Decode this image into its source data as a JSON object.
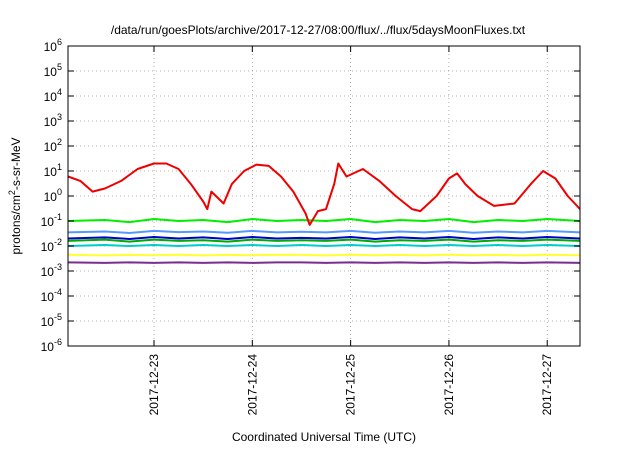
{
  "chart_data": {
    "type": "line",
    "title": "/data/run/goesPlots/archive/2017-12-27/08:00/flux/../flux/5daysMoonFluxes.txt",
    "xlabel": "Coordinated Universal Time (UTC)",
    "ylabel": {
      "base": "protons/cm",
      "sup": "2",
      "rest": "-s-sr-MeV"
    },
    "y_scale": "log",
    "ylim": [
      1e-06,
      1000000.0
    ],
    "y_ticks": [
      {
        "value": 1e-06,
        "base": "10",
        "exp": "-6"
      },
      {
        "value": 1e-05,
        "base": "10",
        "exp": "-5"
      },
      {
        "value": 0.0001,
        "base": "10",
        "exp": "-4"
      },
      {
        "value": 0.001,
        "base": "10",
        "exp": "-3"
      },
      {
        "value": 0.01,
        "base": "10",
        "exp": "-2"
      },
      {
        "value": 0.1,
        "base": "10",
        "exp": "-1"
      },
      {
        "value": 1,
        "base": "10",
        "exp": "0"
      },
      {
        "value": 10,
        "base": "10",
        "exp": "1"
      },
      {
        "value": 100,
        "base": "10",
        "exp": "2"
      },
      {
        "value": 1000,
        "base": "10",
        "exp": "3"
      },
      {
        "value": 10000,
        "base": "10",
        "exp": "4"
      },
      {
        "value": 100000,
        "base": "10",
        "exp": "5"
      },
      {
        "value": 1000000,
        "base": "10",
        "exp": "6"
      }
    ],
    "xlim": [
      "2017-12-22T03:00",
      "2017-12-27T08:00"
    ],
    "x_ticks": [
      {
        "value": "2017-12-23T00:00",
        "label": "2017-12-23"
      },
      {
        "value": "2017-12-24T00:00",
        "label": "2017-12-24"
      },
      {
        "value": "2017-12-25T00:00",
        "label": "2017-12-25"
      },
      {
        "value": "2017-12-26T00:00",
        "label": "2017-12-26"
      },
      {
        "value": "2017-12-27T00:00",
        "label": "2017-12-27"
      }
    ],
    "grid": "dotted",
    "series": [
      {
        "color": "#7b2d8e",
        "points": [
          [
            "2017-12-22T03:00",
            0.0022
          ],
          [
            "2017-12-22T12:00",
            0.0021
          ],
          [
            "2017-12-22T18:00",
            0.0022
          ],
          [
            "2017-12-23T00:00",
            0.0021
          ],
          [
            "2017-12-23T06:00",
            0.0022
          ],
          [
            "2017-12-23T12:00",
            0.0021
          ],
          [
            "2017-12-23T18:00",
            0.0022
          ],
          [
            "2017-12-24T00:00",
            0.0021
          ],
          [
            "2017-12-24T06:00",
            0.0022
          ],
          [
            "2017-12-24T12:00",
            0.0022
          ],
          [
            "2017-12-24T18:00",
            0.0021
          ],
          [
            "2017-12-25T00:00",
            0.0022
          ],
          [
            "2017-12-25T06:00",
            0.0021
          ],
          [
            "2017-12-25T12:00",
            0.0022
          ],
          [
            "2017-12-25T18:00",
            0.0021
          ],
          [
            "2017-12-26T00:00",
            0.0022
          ],
          [
            "2017-12-26T06:00",
            0.0021
          ],
          [
            "2017-12-26T12:00",
            0.0022
          ],
          [
            "2017-12-26T18:00",
            0.0021
          ],
          [
            "2017-12-27T00:00",
            0.0022
          ],
          [
            "2017-12-27T08:00",
            0.0021
          ]
        ]
      },
      {
        "color": "#ffff33",
        "points": [
          [
            "2017-12-22T03:00",
            0.0045
          ],
          [
            "2017-12-22T12:00",
            0.0042
          ],
          [
            "2017-12-22T18:00",
            0.0044
          ],
          [
            "2017-12-23T00:00",
            0.0043
          ],
          [
            "2017-12-23T06:00",
            0.0045
          ],
          [
            "2017-12-23T12:00",
            0.0042
          ],
          [
            "2017-12-23T18:00",
            0.0044
          ],
          [
            "2017-12-24T00:00",
            0.0043
          ],
          [
            "2017-12-24T06:00",
            0.0045
          ],
          [
            "2017-12-24T12:00",
            0.0044
          ],
          [
            "2017-12-24T18:00",
            0.0042
          ],
          [
            "2017-12-25T00:00",
            0.0045
          ],
          [
            "2017-12-25T06:00",
            0.0043
          ],
          [
            "2017-12-25T12:00",
            0.0044
          ],
          [
            "2017-12-25T18:00",
            0.0042
          ],
          [
            "2017-12-26T00:00",
            0.0045
          ],
          [
            "2017-12-26T06:00",
            0.0043
          ],
          [
            "2017-12-26T12:00",
            0.0044
          ],
          [
            "2017-12-26T18:00",
            0.0042
          ],
          [
            "2017-12-27T00:00",
            0.0045
          ],
          [
            "2017-12-27T08:00",
            0.0043
          ]
        ]
      },
      {
        "color": "#00cccc",
        "points": [
          [
            "2017-12-22T03:00",
            0.01
          ],
          [
            "2017-12-22T12:00",
            0.011
          ],
          [
            "2017-12-22T18:00",
            0.01
          ],
          [
            "2017-12-23T00:00",
            0.011
          ],
          [
            "2017-12-23T06:00",
            0.01
          ],
          [
            "2017-12-23T12:00",
            0.011
          ],
          [
            "2017-12-23T18:00",
            0.01
          ],
          [
            "2017-12-24T00:00",
            0.011
          ],
          [
            "2017-12-24T06:00",
            0.01
          ],
          [
            "2017-12-24T12:00",
            0.011
          ],
          [
            "2017-12-24T18:00",
            0.01
          ],
          [
            "2017-12-25T00:00",
            0.011
          ],
          [
            "2017-12-25T06:00",
            0.01
          ],
          [
            "2017-12-25T12:00",
            0.011
          ],
          [
            "2017-12-25T18:00",
            0.01
          ],
          [
            "2017-12-26T00:00",
            0.011
          ],
          [
            "2017-12-26T06:00",
            0.01
          ],
          [
            "2017-12-26T12:00",
            0.011
          ],
          [
            "2017-12-26T18:00",
            0.01
          ],
          [
            "2017-12-27T00:00",
            0.011
          ],
          [
            "2017-12-27T08:00",
            0.01
          ]
        ]
      },
      {
        "color": "#00aa00",
        "points": [
          [
            "2017-12-22T03:00",
            0.016
          ],
          [
            "2017-12-22T12:00",
            0.018
          ],
          [
            "2017-12-22T18:00",
            0.015
          ],
          [
            "2017-12-23T00:00",
            0.018
          ],
          [
            "2017-12-23T06:00",
            0.016
          ],
          [
            "2017-12-23T12:00",
            0.017
          ],
          [
            "2017-12-23T18:00",
            0.015
          ],
          [
            "2017-12-24T00:00",
            0.018
          ],
          [
            "2017-12-24T06:00",
            0.016
          ],
          [
            "2017-12-24T12:00",
            0.017
          ],
          [
            "2017-12-24T18:00",
            0.016
          ],
          [
            "2017-12-25T00:00",
            0.018
          ],
          [
            "2017-12-25T06:00",
            0.015
          ],
          [
            "2017-12-25T12:00",
            0.017
          ],
          [
            "2017-12-25T18:00",
            0.016
          ],
          [
            "2017-12-26T00:00",
            0.018
          ],
          [
            "2017-12-26T06:00",
            0.015
          ],
          [
            "2017-12-26T12:00",
            0.017
          ],
          [
            "2017-12-26T18:00",
            0.016
          ],
          [
            "2017-12-27T00:00",
            0.018
          ],
          [
            "2017-12-27T08:00",
            0.016
          ]
        ]
      },
      {
        "color": "#0000cc",
        "points": [
          [
            "2017-12-22T03:00",
            0.02
          ],
          [
            "2017-12-22T12:00",
            0.022
          ],
          [
            "2017-12-22T18:00",
            0.019
          ],
          [
            "2017-12-23T00:00",
            0.023
          ],
          [
            "2017-12-23T06:00",
            0.02
          ],
          [
            "2017-12-23T12:00",
            0.022
          ],
          [
            "2017-12-23T18:00",
            0.019
          ],
          [
            "2017-12-24T00:00",
            0.023
          ],
          [
            "2017-12-24T06:00",
            0.02
          ],
          [
            "2017-12-24T12:00",
            0.021
          ],
          [
            "2017-12-24T18:00",
            0.02
          ],
          [
            "2017-12-25T00:00",
            0.023
          ],
          [
            "2017-12-25T06:00",
            0.019
          ],
          [
            "2017-12-25T12:00",
            0.022
          ],
          [
            "2017-12-25T18:00",
            0.02
          ],
          [
            "2017-12-26T00:00",
            0.023
          ],
          [
            "2017-12-26T06:00",
            0.019
          ],
          [
            "2017-12-26T12:00",
            0.022
          ],
          [
            "2017-12-26T18:00",
            0.02
          ],
          [
            "2017-12-27T00:00",
            0.023
          ],
          [
            "2017-12-27T08:00",
            0.02
          ]
        ]
      },
      {
        "color": "#5599ff",
        "points": [
          [
            "2017-12-22T03:00",
            0.035
          ],
          [
            "2017-12-22T12:00",
            0.038
          ],
          [
            "2017-12-22T18:00",
            0.033
          ],
          [
            "2017-12-23T00:00",
            0.04
          ],
          [
            "2017-12-23T06:00",
            0.036
          ],
          [
            "2017-12-23T12:00",
            0.038
          ],
          [
            "2017-12-23T18:00",
            0.034
          ],
          [
            "2017-12-24T00:00",
            0.04
          ],
          [
            "2017-12-24T06:00",
            0.035
          ],
          [
            "2017-12-24T12:00",
            0.037
          ],
          [
            "2017-12-24T18:00",
            0.035
          ],
          [
            "2017-12-25T00:00",
            0.04
          ],
          [
            "2017-12-25T06:00",
            0.034
          ],
          [
            "2017-12-25T12:00",
            0.038
          ],
          [
            "2017-12-25T18:00",
            0.035
          ],
          [
            "2017-12-26T00:00",
            0.04
          ],
          [
            "2017-12-26T06:00",
            0.034
          ],
          [
            "2017-12-26T12:00",
            0.038
          ],
          [
            "2017-12-26T18:00",
            0.035
          ],
          [
            "2017-12-27T00:00",
            0.04
          ],
          [
            "2017-12-27T08:00",
            0.035
          ]
        ]
      },
      {
        "color": "#00ee00",
        "points": [
          [
            "2017-12-22T03:00",
            0.1
          ],
          [
            "2017-12-22T12:00",
            0.11
          ],
          [
            "2017-12-22T18:00",
            0.09
          ],
          [
            "2017-12-23T00:00",
            0.12
          ],
          [
            "2017-12-23T06:00",
            0.1
          ],
          [
            "2017-12-23T12:00",
            0.11
          ],
          [
            "2017-12-23T18:00",
            0.09
          ],
          [
            "2017-12-24T00:00",
            0.12
          ],
          [
            "2017-12-24T06:00",
            0.1
          ],
          [
            "2017-12-24T12:00",
            0.11
          ],
          [
            "2017-12-24T18:00",
            0.1
          ],
          [
            "2017-12-25T00:00",
            0.12
          ],
          [
            "2017-12-25T06:00",
            0.09
          ],
          [
            "2017-12-25T12:00",
            0.11
          ],
          [
            "2017-12-25T18:00",
            0.1
          ],
          [
            "2017-12-26T00:00",
            0.12
          ],
          [
            "2017-12-26T06:00",
            0.09
          ],
          [
            "2017-12-26T12:00",
            0.11
          ],
          [
            "2017-12-26T18:00",
            0.1
          ],
          [
            "2017-12-27T00:00",
            0.12
          ],
          [
            "2017-12-27T08:00",
            0.1
          ]
        ]
      },
      {
        "color": "#ee0000",
        "points": [
          [
            "2017-12-22T03:00",
            6
          ],
          [
            "2017-12-22T06:00",
            4
          ],
          [
            "2017-12-22T09:00",
            1.5
          ],
          [
            "2017-12-22T12:00",
            2
          ],
          [
            "2017-12-22T16:00",
            4
          ],
          [
            "2017-12-22T20:00",
            12
          ],
          [
            "2017-12-23T00:00",
            20
          ],
          [
            "2017-12-23T03:00",
            20
          ],
          [
            "2017-12-23T06:00",
            12
          ],
          [
            "2017-12-23T09:00",
            3
          ],
          [
            "2017-12-23T12:00",
            0.6
          ],
          [
            "2017-12-23T13:00",
            0.3
          ],
          [
            "2017-12-23T14:00",
            1.5
          ],
          [
            "2017-12-23T17:00",
            0.5
          ],
          [
            "2017-12-23T19:00",
            3
          ],
          [
            "2017-12-23T22:00",
            10
          ],
          [
            "2017-12-24T01:00",
            18
          ],
          [
            "2017-12-24T04:00",
            16
          ],
          [
            "2017-12-24T07:00",
            6
          ],
          [
            "2017-12-24T10:00",
            1.5
          ],
          [
            "2017-12-24T13:00",
            0.2
          ],
          [
            "2017-12-24T14:00",
            0.07
          ],
          [
            "2017-12-24T16:00",
            0.25
          ],
          [
            "2017-12-24T18:00",
            0.3
          ],
          [
            "2017-12-24T20:00",
            3
          ],
          [
            "2017-12-24T21:00",
            20
          ],
          [
            "2017-12-24T23:00",
            6
          ],
          [
            "2017-12-25T03:00",
            12
          ],
          [
            "2017-12-25T07:00",
            4
          ],
          [
            "2017-12-25T11:00",
            1
          ],
          [
            "2017-12-25T15:00",
            0.3
          ],
          [
            "2017-12-25T17:00",
            0.25
          ],
          [
            "2017-12-25T21:00",
            1
          ],
          [
            "2017-12-26T00:00",
            5
          ],
          [
            "2017-12-26T02:00",
            8
          ],
          [
            "2017-12-26T04:00",
            3
          ],
          [
            "2017-12-26T07:00",
            1
          ],
          [
            "2017-12-26T11:00",
            0.4
          ],
          [
            "2017-12-26T16:00",
            0.5
          ],
          [
            "2017-12-26T20:00",
            3
          ],
          [
            "2017-12-26T23:00",
            10
          ],
          [
            "2017-12-27T02:00",
            5
          ],
          [
            "2017-12-27T05:00",
            1
          ],
          [
            "2017-12-27T08:00",
            0.3
          ]
        ]
      }
    ]
  }
}
